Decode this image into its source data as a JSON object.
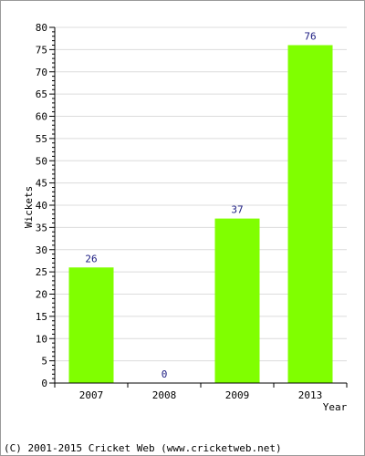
{
  "chart_data": {
    "type": "bar",
    "title": "",
    "xlabel": "Year",
    "ylabel": "Wickets",
    "categories": [
      "2007",
      "2008",
      "2009",
      "2013"
    ],
    "values": [
      26,
      0,
      37,
      76
    ],
    "ylim": [
      0,
      80
    ],
    "yticks": [
      0,
      5,
      10,
      15,
      20,
      25,
      30,
      35,
      40,
      45,
      50,
      55,
      60,
      65,
      70,
      75,
      80
    ],
    "grid": true,
    "bar_color": "#80ff00",
    "label_color": "#1a1a80"
  },
  "footer": {
    "copyright": "(C) 2001-2015 Cricket Web (www.cricketweb.net)"
  }
}
